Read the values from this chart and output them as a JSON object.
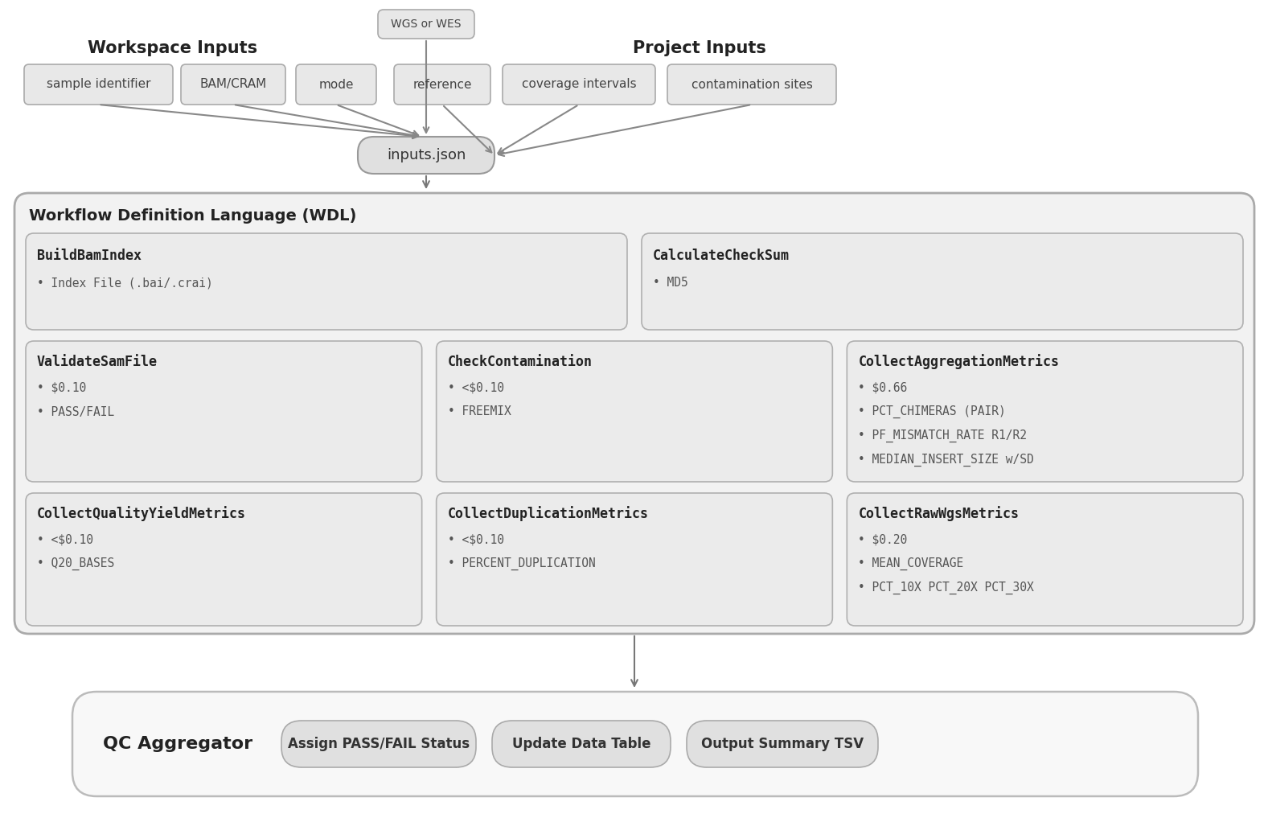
{
  "bg_color": "#ffffff",
  "workspace_label": "Workspace Inputs",
  "project_label": "Project Inputs",
  "wgs_label": "WGS or WES",
  "inputs_json_label": "inputs.json",
  "workspace_inputs": [
    "sample identifier",
    "BAM/CRAM",
    "mode"
  ],
  "project_inputs": [
    "reference",
    "coverage intervals",
    "contamination sites"
  ],
  "wdl_label": "Workflow Definition Language (WDL)",
  "wdl_fill": "#f2f2f2",
  "wdl_edge": "#aaaaaa",
  "task_fill": "#ebebeb",
  "task_edge": "#b0b0b0",
  "input_fill": "#e8e8e8",
  "input_edge": "#aaaaaa",
  "ij_fill": "#e0e0e0",
  "ij_edge": "#999999",
  "arrow_color": "#777777",
  "qca_fill": "#f8f8f8",
  "qca_edge": "#bbbbbb",
  "btn_fill": "#e0e0e0",
  "btn_edge": "#aaaaaa",
  "qc_aggregator_label": "QC Aggregator",
  "qc_buttons": [
    "Assign PASS/FAIL Status",
    "Update Data Table",
    "Output Summary TSV"
  ],
  "tasks_row0": [
    {
      "name": "BuildBamIndex",
      "items": [
        "Index File (.bai/.crai)"
      ]
    },
    {
      "name": "CalculateCheckSum",
      "items": [
        "MD5"
      ]
    }
  ],
  "tasks_row1": [
    {
      "name": "ValidateSamFile",
      "items": [
        "$0.10",
        "PASS/FAIL"
      ]
    },
    {
      "name": "CheckContamination",
      "items": [
        "<$0.10",
        "FREEMIX"
      ]
    },
    {
      "name": "CollectAggregationMetrics",
      "items": [
        "$0.66",
        "PCT_CHIMERAS (PAIR)",
        "PF_MISMATCH_RATE R1/R2",
        "MEDIAN_INSERT_SIZE w/SD"
      ]
    }
  ],
  "tasks_row2": [
    {
      "name": "CollectQualityYieldMetrics",
      "items": [
        "<$0.10",
        "Q20_BASES"
      ]
    },
    {
      "name": "CollectDuplicationMetrics",
      "items": [
        "<$0.10",
        "PERCENT_DUPLICATION"
      ]
    },
    {
      "name": "CollectRawWgsMetrics",
      "items": [
        "$0.20",
        "MEAN_COVERAGE",
        "PCT_10X PCT_20X PCT_30X"
      ]
    }
  ]
}
